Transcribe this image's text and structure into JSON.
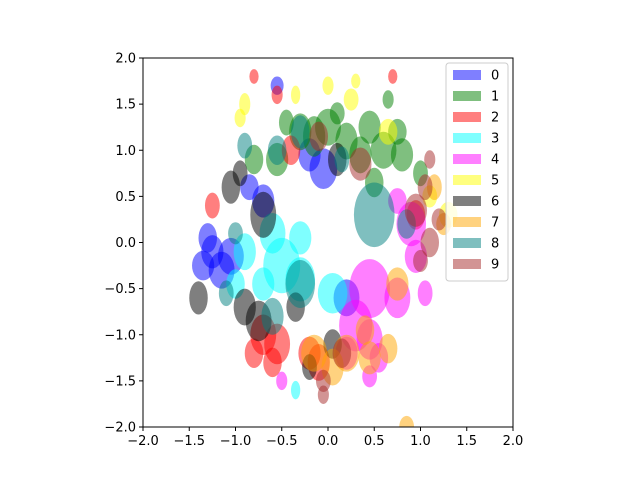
{
  "chart_data": {
    "type": "scatter",
    "title": "",
    "xlabel": "",
    "ylabel": "",
    "xlim": [
      -2.0,
      2.0
    ],
    "ylim": [
      -2.0,
      2.0
    ],
    "xticks": [
      "−2.0",
      "−1.5",
      "−1.0",
      "−0.5",
      "0.0",
      "0.5",
      "1.0",
      "1.5",
      "2.0"
    ],
    "yticks": [
      "−2.0",
      "−1.5",
      "−1.0",
      "−0.5",
      "0.0",
      "0.5",
      "1.0",
      "1.5",
      "2.0"
    ],
    "grid": false,
    "legend_position": "upper-right",
    "marker_alpha": 0.5,
    "series": [
      {
        "name": "0",
        "color": "#0000ff",
        "points": [
          [
            -1.35,
            -0.25,
            0.12,
            0.16
          ],
          [
            -1.15,
            -0.3,
            0.14,
            0.2
          ],
          [
            -1.3,
            0.05,
            0.1,
            0.16
          ],
          [
            -1.05,
            -0.15,
            0.14,
            0.2
          ],
          [
            -0.55,
            1.7,
            0.07,
            0.1
          ],
          [
            -0.05,
            0.8,
            0.15,
            0.22
          ],
          [
            0.2,
            -0.6,
            0.14,
            0.2
          ],
          [
            -0.2,
            0.95,
            0.12,
            0.18
          ],
          [
            -1.25,
            -0.1,
            0.12,
            0.18
          ],
          [
            -0.85,
            0.6,
            0.1,
            0.14
          ],
          [
            -0.7,
            0.45,
            0.12,
            0.18
          ]
        ]
      },
      {
        "name": "1",
        "color": "#008000",
        "points": [
          [
            -0.15,
            1.15,
            0.12,
            0.22
          ],
          [
            0.0,
            1.25,
            0.14,
            0.2
          ],
          [
            0.2,
            1.1,
            0.12,
            0.2
          ],
          [
            0.45,
            1.25,
            0.12,
            0.18
          ],
          [
            0.6,
            1.0,
            0.14,
            0.2
          ],
          [
            0.8,
            0.95,
            0.12,
            0.18
          ],
          [
            -0.3,
            1.2,
            0.12,
            0.2
          ],
          [
            0.1,
            1.4,
            0.08,
            0.12
          ],
          [
            -0.55,
            0.9,
            0.12,
            0.18
          ],
          [
            0.35,
            0.95,
            0.12,
            0.2
          ],
          [
            0.75,
            1.2,
            0.1,
            0.14
          ],
          [
            -0.45,
            1.3,
            0.08,
            0.14
          ],
          [
            0.65,
            1.55,
            0.06,
            0.1
          ],
          [
            0.5,
            0.65,
            0.1,
            0.16
          ],
          [
            -0.8,
            0.9,
            0.1,
            0.16
          ],
          [
            1.0,
            0.75,
            0.08,
            0.14
          ]
        ]
      },
      {
        "name": "2",
        "color": "#ff0000",
        "points": [
          [
            -0.8,
            1.8,
            0.05,
            0.08
          ],
          [
            0.7,
            1.8,
            0.05,
            0.08
          ],
          [
            -0.7,
            -1.0,
            0.14,
            0.22
          ],
          [
            -0.55,
            -1.1,
            0.14,
            0.22
          ],
          [
            -0.6,
            -1.3,
            0.1,
            0.16
          ],
          [
            -0.8,
            -1.2,
            0.1,
            0.16
          ],
          [
            -0.4,
            1.0,
            0.1,
            0.16
          ],
          [
            -0.2,
            -1.2,
            0.12,
            0.18
          ],
          [
            -1.25,
            0.4,
            0.08,
            0.14
          ],
          [
            0.95,
            0.3,
            0.1,
            0.16
          ],
          [
            -0.1,
            -1.3,
            0.12,
            0.2
          ],
          [
            -0.55,
            1.6,
            0.06,
            0.1
          ]
        ]
      },
      {
        "name": "3",
        "color": "#00ffff",
        "points": [
          [
            -0.5,
            -0.25,
            0.2,
            0.3
          ],
          [
            -0.9,
            -0.1,
            0.12,
            0.2
          ],
          [
            -0.3,
            -0.4,
            0.16,
            0.24
          ],
          [
            -0.7,
            -0.45,
            0.12,
            0.18
          ],
          [
            0.05,
            -0.55,
            0.16,
            0.22
          ],
          [
            -0.35,
            -1.6,
            0.05,
            0.1
          ],
          [
            -1.0,
            -0.45,
            0.1,
            0.16
          ],
          [
            -0.6,
            0.1,
            0.14,
            0.22
          ],
          [
            -0.3,
            0.05,
            0.12,
            0.18
          ]
        ]
      },
      {
        "name": "4",
        "color": "#ff00ff",
        "points": [
          [
            0.45,
            -0.5,
            0.22,
            0.32
          ],
          [
            0.3,
            -0.9,
            0.18,
            0.28
          ],
          [
            0.45,
            -1.05,
            0.14,
            0.22
          ],
          [
            0.75,
            -0.6,
            0.14,
            0.22
          ],
          [
            0.9,
            0.2,
            0.16,
            0.24
          ],
          [
            0.95,
            -0.15,
            0.12,
            0.18
          ],
          [
            1.05,
            -0.55,
            0.08,
            0.14
          ],
          [
            0.2,
            -1.2,
            0.12,
            0.18
          ],
          [
            0.55,
            -1.25,
            0.1,
            0.16
          ],
          [
            -0.5,
            -1.5,
            0.06,
            0.1
          ],
          [
            0.45,
            -1.45,
            0.08,
            0.12
          ],
          [
            0.75,
            0.45,
            0.1,
            0.14
          ]
        ]
      },
      {
        "name": "5",
        "color": "#ffff00",
        "points": [
          [
            -0.9,
            1.5,
            0.06,
            0.12
          ],
          [
            0.0,
            1.7,
            0.06,
            0.1
          ],
          [
            0.25,
            1.55,
            0.08,
            0.12
          ],
          [
            0.65,
            1.2,
            0.1,
            0.14
          ],
          [
            1.3,
            0.3,
            0.1,
            0.14
          ],
          [
            0.3,
            1.75,
            0.05,
            0.08
          ],
          [
            -0.35,
            1.6,
            0.05,
            0.1
          ],
          [
            -0.95,
            1.35,
            0.06,
            0.1
          ],
          [
            1.1,
            0.5,
            0.08,
            0.12
          ]
        ]
      },
      {
        "name": "6",
        "color": "#000000",
        "points": [
          [
            -0.7,
            0.3,
            0.14,
            0.25
          ],
          [
            -0.9,
            -0.7,
            0.12,
            0.2
          ],
          [
            -0.75,
            -0.85,
            0.14,
            0.22
          ],
          [
            -1.4,
            -0.6,
            0.1,
            0.18
          ],
          [
            -1.05,
            0.6,
            0.1,
            0.18
          ],
          [
            -0.95,
            0.75,
            0.08,
            0.14
          ],
          [
            0.1,
            0.9,
            0.1,
            0.18
          ],
          [
            -0.35,
            -0.7,
            0.1,
            0.16
          ],
          [
            0.05,
            -1.1,
            0.1,
            0.16
          ],
          [
            -0.2,
            -1.35,
            0.08,
            0.14
          ]
        ]
      },
      {
        "name": "7",
        "color": "#ffa500",
        "points": [
          [
            0.75,
            -0.45,
            0.12,
            0.18
          ],
          [
            0.2,
            -1.2,
            0.14,
            0.2
          ],
          [
            0.05,
            -1.35,
            0.12,
            0.2
          ],
          [
            -0.15,
            -1.2,
            0.14,
            0.2
          ],
          [
            0.45,
            -1.25,
            0.12,
            0.18
          ],
          [
            1.15,
            0.6,
            0.08,
            0.14
          ],
          [
            1.25,
            0.2,
            0.08,
            0.12
          ],
          [
            0.85,
            -2.0,
            0.08,
            0.12
          ],
          [
            0.4,
            -0.95,
            0.1,
            0.16
          ],
          [
            0.65,
            -1.15,
            0.1,
            0.16
          ]
        ]
      },
      {
        "name": "8",
        "color": "#008080",
        "points": [
          [
            0.5,
            0.3,
            0.22,
            0.35
          ],
          [
            -0.3,
            -0.45,
            0.16,
            0.26
          ],
          [
            -0.55,
            1.0,
            0.1,
            0.16
          ],
          [
            -0.9,
            1.05,
            0.08,
            0.14
          ],
          [
            0.85,
            0.2,
            0.1,
            0.16
          ],
          [
            -1.0,
            0.1,
            0.08,
            0.12
          ],
          [
            -1.1,
            -0.55,
            0.08,
            0.14
          ],
          [
            -0.6,
            -0.8,
            0.12,
            0.2
          ],
          [
            -0.3,
            1.2,
            0.1,
            0.18
          ],
          [
            0.15,
            0.9,
            0.08,
            0.14
          ]
        ]
      },
      {
        "name": "9",
        "color": "#a52a2a",
        "points": [
          [
            1.1,
            0.0,
            0.1,
            0.16
          ],
          [
            0.95,
            0.35,
            0.12,
            0.18
          ],
          [
            1.1,
            0.9,
            0.06,
            0.1
          ],
          [
            1.2,
            0.25,
            0.08,
            0.12
          ],
          [
            0.15,
            -1.2,
            0.1,
            0.16
          ],
          [
            -0.05,
            -1.5,
            0.08,
            0.12
          ],
          [
            -0.05,
            -1.65,
            0.06,
            0.1
          ],
          [
            1.05,
            0.6,
            0.08,
            0.14
          ],
          [
            0.35,
            0.85,
            0.12,
            0.18
          ],
          [
            -0.1,
            1.15,
            0.1,
            0.16
          ],
          [
            1.0,
            -0.2,
            0.08,
            0.12
          ]
        ]
      }
    ]
  }
}
